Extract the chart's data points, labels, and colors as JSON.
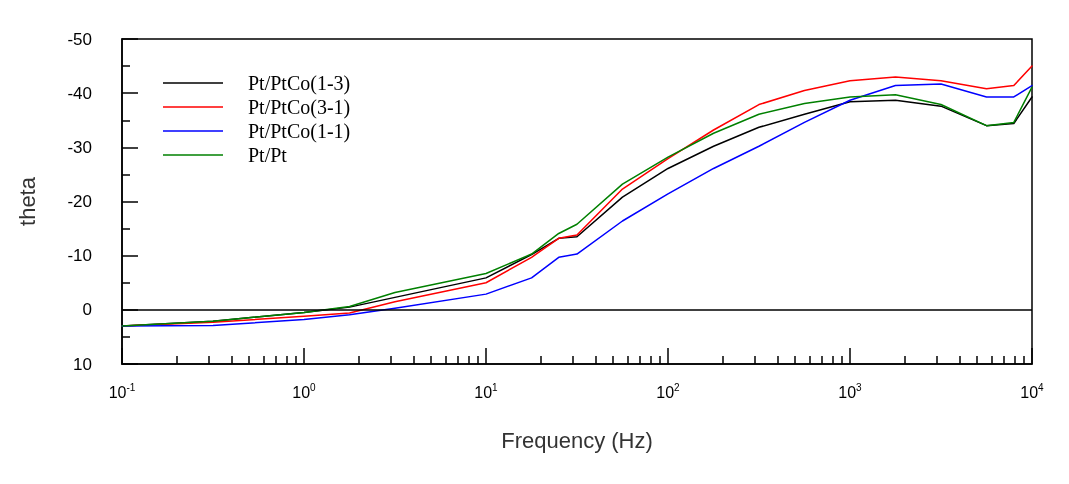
{
  "chart_data": {
    "type": "line",
    "xlabel": "Frequency (Hz)",
    "ylabel": "theta",
    "log": "x",
    "x": [
      0.1,
      0.316,
      1,
      1.78,
      3.16,
      10,
      17.8,
      25.1,
      31.6,
      56.2,
      100,
      178,
      316,
      562,
      1000,
      1778,
      3162,
      5623,
      7943,
      10000
    ],
    "xlim": [
      0.1,
      10000
    ],
    "xticks": [
      {
        "value": 0.1,
        "label": "10$^{-1}$"
      },
      {
        "value": 1,
        "label": "10$^{0}$"
      },
      {
        "value": 10,
        "label": "10$^{1}$"
      },
      {
        "value": 100,
        "label": "10$^{2}$"
      },
      {
        "value": 1000,
        "label": "10$^{3}$"
      },
      {
        "value": 10000,
        "label": "10$^{4}$"
      }
    ],
    "ylim": [
      10,
      -50
    ],
    "yticks": [
      -50,
      -40,
      -30,
      -20,
      -10,
      0,
      10
    ],
    "grid": false,
    "legend": "top left",
    "marker": "none",
    "line_style": "solid",
    "ref_lines": [
      {
        "axis": "y",
        "value": 0,
        "color": "#000000"
      }
    ],
    "series": [
      {
        "name": "Pt/PtCo(1-3)",
        "color": "#000000",
        "values": [
          3,
          2.1,
          0.5,
          -0.5,
          -2.3,
          -5.9,
          -10.2,
          -13.2,
          -13.5,
          -20.8,
          -26.1,
          -30.2,
          -33.7,
          -36.1,
          -38.4,
          -38.7,
          -37.6,
          -34,
          -34.4,
          -39.3
        ]
      },
      {
        "name": "Pt/PtCo(3-1)",
        "color": "#ff0000",
        "values": [
          3,
          2.3,
          1.2,
          0.6,
          -1.5,
          -5,
          -9.7,
          -13.2,
          -13.8,
          -22.3,
          -27.9,
          -33.2,
          -37.9,
          -40.5,
          -42.3,
          -43,
          -42.3,
          -40.8,
          -41.4,
          -45
        ]
      },
      {
        "name": "Pt/PtCo(1-1)",
        "color": "#0000ff",
        "values": [
          3,
          2.9,
          1.8,
          0.9,
          -0.3,
          -2.9,
          -5.9,
          -9.7,
          -10.3,
          -16.4,
          -21.4,
          -26.1,
          -30.2,
          -34.6,
          -38.7,
          -41.4,
          -41.7,
          -39.3,
          -39.3,
          -41.4
        ]
      },
      {
        "name": "Pt/Pt",
        "color": "#008000",
        "values": [
          3,
          2.1,
          0.5,
          -0.6,
          -3.2,
          -6.7,
          -10.3,
          -14.1,
          -15.8,
          -23.2,
          -28.2,
          -32.6,
          -36.1,
          -38.1,
          -39.3,
          -39.7,
          -37.9,
          -34,
          -34.6,
          -41.1
        ]
      }
    ]
  }
}
